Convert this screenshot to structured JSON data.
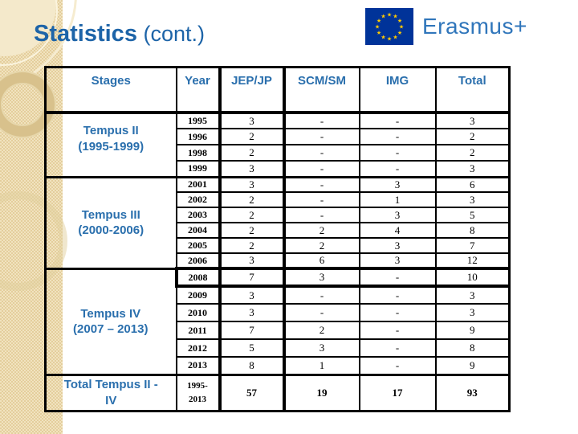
{
  "slide": {
    "title_main": "Statistics",
    "title_suffix": " (cont.)"
  },
  "logo": {
    "text": "Erasmus+"
  },
  "colors": {
    "title_blue": "#1d64a8",
    "table_heading_blue": "#2a6fad",
    "logo_text_blue": "#3076bb",
    "flag_blue": "#003399",
    "star_yellow": "#ffcc00",
    "strip_beige": "#ecd9a9",
    "table_border_black": "#000000"
  },
  "table": {
    "headers": [
      "Stages",
      "Year",
      "JEP/JP",
      "SCM/SM",
      "IMG",
      "Total"
    ],
    "groups": [
      {
        "stage_line1": "Tempus II",
        "stage_line2": "(1995-1999)",
        "rows": [
          {
            "year": "1995",
            "values": [
              "3",
              "-",
              "-",
              "3"
            ]
          },
          {
            "year": "1996",
            "values": [
              "2",
              "-",
              "-",
              "2"
            ]
          },
          {
            "year": "1998",
            "values": [
              "2",
              "-",
              "-",
              "2"
            ]
          },
          {
            "year": "1999",
            "values": [
              "3",
              "-",
              "-",
              "3"
            ]
          }
        ]
      },
      {
        "stage_line1": "Tempus III",
        "stage_line2": "(2000-2006)",
        "rows": [
          {
            "year": "2001",
            "values": [
              "3",
              "-",
              "3",
              "6"
            ]
          },
          {
            "year": "2002",
            "values": [
              "2",
              "-",
              "1",
              "3"
            ]
          },
          {
            "year": "2003",
            "values": [
              "2",
              "-",
              "3",
              "5"
            ]
          },
          {
            "year": "2004",
            "values": [
              "2",
              "2",
              "4",
              "8"
            ]
          },
          {
            "year": "2005",
            "values": [
              "2",
              "2",
              "3",
              "7"
            ]
          },
          {
            "year": "2006",
            "values": [
              "3",
              "6",
              "3",
              "12"
            ]
          }
        ]
      },
      {
        "stage_line1": "Tempus IV",
        "stage_line2": "(2007 – 2013)",
        "rows": [
          {
            "year": "2008",
            "values": [
              "7",
              "3",
              "-",
              "10"
            ],
            "highlight": true
          },
          {
            "year": "2009",
            "values": [
              "3",
              "-",
              "-",
              "3"
            ]
          },
          {
            "year": "2010",
            "values": [
              "3",
              "-",
              "-",
              "3"
            ]
          },
          {
            "year": "2011",
            "values": [
              "7",
              "2",
              "-",
              "9"
            ]
          },
          {
            "year": "2012",
            "values": [
              "5",
              "3",
              "-",
              "8"
            ]
          },
          {
            "year": "2013",
            "values": [
              "8",
              "1",
              "-",
              "9"
            ]
          }
        ]
      },
      {
        "stage_line1": "Total Tempus II -",
        "stage_line2": "IV",
        "is_total": true,
        "rows": [
          {
            "year": "1995-2013",
            "values": [
              "57",
              "19",
              "17",
              "93"
            ]
          }
        ]
      }
    ]
  }
}
